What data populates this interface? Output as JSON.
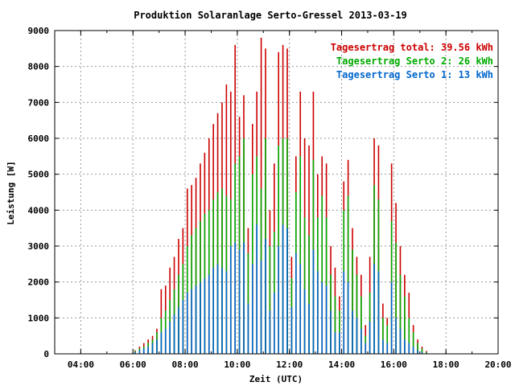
{
  "chart_data": {
    "type": "bar",
    "title": "Produktion Solaranlage Serto-Gressel 2013-03-19",
    "xlabel": "Zeit (UTC)",
    "ylabel": "Leistung [W]",
    "xlim": [
      "03:00",
      "20:00"
    ],
    "ylim": [
      0,
      9000
    ],
    "grid": true,
    "legend_position": "top-right",
    "x_ticks": [
      "04:00",
      "06:00",
      "08:00",
      "10:00",
      "12:00",
      "14:00",
      "16:00",
      "18:00",
      "20:00"
    ],
    "y_ticks": [
      0,
      1000,
      2000,
      3000,
      4000,
      5000,
      6000,
      7000,
      8000,
      9000
    ],
    "legend": [
      {
        "label": "Tagesertrag total: 39.56 kWh",
        "color": "#cc0000"
      },
      {
        "label": "Tagesertrag Serto 2: 26 kWh",
        "color": "#00aa00"
      },
      {
        "label": "Tagesertrag Serto 1: 13 kWh",
        "color": "#0066cc"
      }
    ],
    "series": [
      {
        "name": "Serto 1",
        "color": "#0066cc",
        "stack_order": 1
      },
      {
        "name": "Serto 2",
        "color": "#00aa00",
        "stack_order": 2
      },
      {
        "name": "total",
        "color": "#cc0000",
        "stack_order": 3
      }
    ],
    "x": [
      "06:05",
      "06:15",
      "06:25",
      "06:35",
      "06:45",
      "06:55",
      "07:05",
      "07:15",
      "07:25",
      "07:35",
      "07:45",
      "07:55",
      "08:05",
      "08:15",
      "08:25",
      "08:35",
      "08:45",
      "08:55",
      "09:05",
      "09:15",
      "09:25",
      "09:35",
      "09:45",
      "09:55",
      "10:05",
      "10:15",
      "10:25",
      "10:35",
      "10:45",
      "10:55",
      "11:05",
      "11:15",
      "11:25",
      "11:35",
      "11:45",
      "11:55",
      "12:05",
      "12:15",
      "12:25",
      "12:35",
      "12:45",
      "12:55",
      "13:05",
      "13:15",
      "13:25",
      "13:35",
      "13:45",
      "13:55",
      "14:05",
      "14:15",
      "14:25",
      "14:35",
      "14:45",
      "14:55",
      "15:05",
      "15:15",
      "15:25",
      "15:35",
      "15:45",
      "15:55",
      "16:05",
      "16:15",
      "16:25",
      "16:35",
      "16:45",
      "16:55",
      "17:05",
      "17:15"
    ],
    "values_serto1": [
      50,
      100,
      150,
      200,
      300,
      400,
      600,
      700,
      900,
      1100,
      1300,
      1500,
      1700,
      1800,
      1900,
      2000,
      2100,
      2200,
      2400,
      2500,
      2400,
      2300,
      3000,
      3100,
      2900,
      3100,
      1400,
      2500,
      3600,
      2600,
      3200,
      1200,
      1700,
      3000,
      3600,
      3500,
      1300,
      2800,
      2500,
      1800,
      1400,
      2900,
      2300,
      2000,
      1900,
      1200,
      600,
      600,
      2300,
      2000,
      1200,
      1000,
      700,
      300,
      900,
      2500,
      2300,
      400,
      300,
      2000,
      1000,
      700,
      400,
      300,
      200,
      100,
      50,
      20
    ],
    "values_serto2": [
      80,
      150,
      200,
      300,
      400,
      600,
      1000,
      1200,
      1500,
      1800,
      2200,
      2500,
      3000,
      3300,
      3500,
      3700,
      3900,
      4000,
      4300,
      4500,
      4600,
      4400,
      4300,
      5300,
      5500,
      6000,
      2800,
      5000,
      5500,
      4600,
      6000,
      3000,
      3400,
      5800,
      6000,
      6000,
      2100,
      4500,
      5500,
      3800,
      3300,
      5400,
      3800,
      4400,
      3800,
      2200,
      1600,
      1200,
      4000,
      4400,
      2900,
      2200,
      1600,
      500,
      1700,
      4700,
      4300,
      1000,
      800,
      3700,
      3100,
      2200,
      1600,
      1000,
      600,
      300,
      150,
      50
    ],
    "values_total": [
      100,
      200,
      300,
      400,
      500,
      700,
      1800,
      1900,
      2400,
      2700,
      3200,
      3500,
      4600,
      4700,
      4900,
      5300,
      5600,
      6000,
      6400,
      6700,
      7000,
      7500,
      7300,
      8600,
      6600,
      7200,
      3500,
      6400,
      7300,
      8800,
      8500,
      4000,
      5300,
      8400,
      8600,
      8500,
      2700,
      5500,
      7300,
      6000,
      5800,
      7300,
      5000,
      5500,
      5300,
      3000,
      2400,
      1600,
      4800,
      5400,
      3500,
      2700,
      2200,
      800,
      2700,
      6000,
      5800,
      1400,
      1000,
      5300,
      4200,
      3000,
      2200,
      1700,
      800,
      400,
      200,
      80
    ]
  }
}
